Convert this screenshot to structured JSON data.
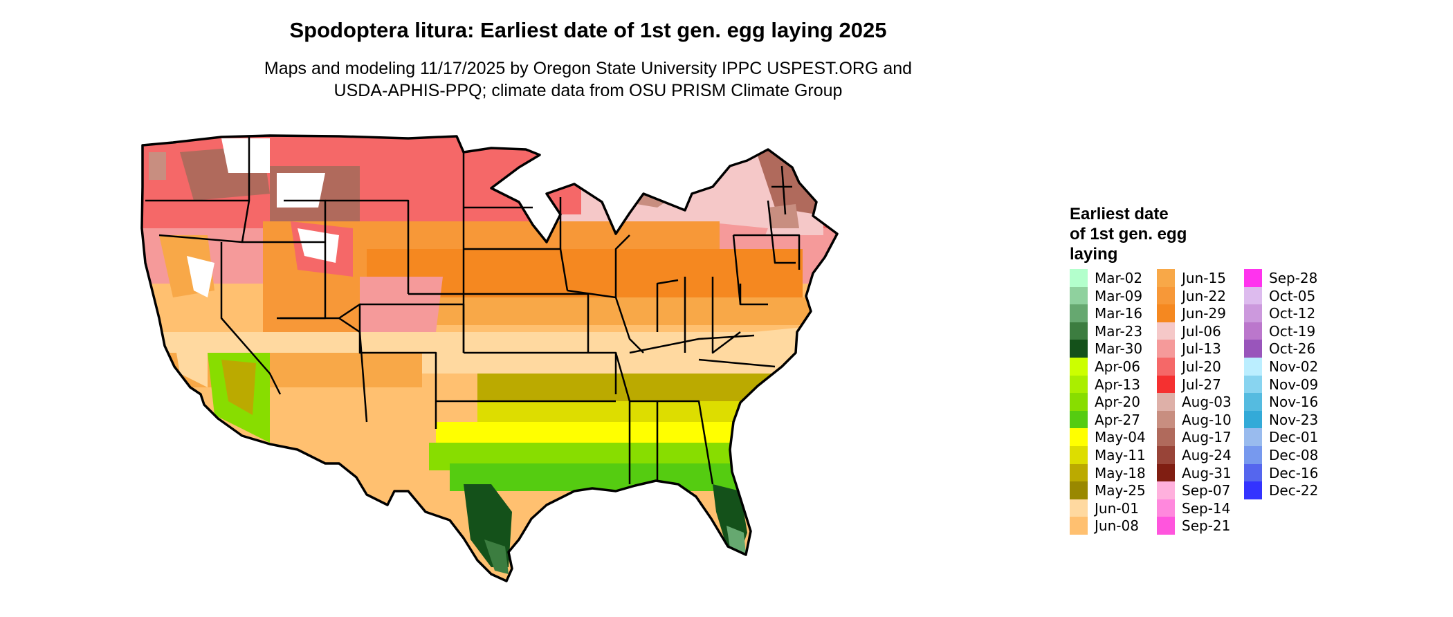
{
  "header": {
    "title": "Spodoptera litura: Earliest date of 1st gen. egg laying 2025",
    "subtitle_line1": "Maps and modeling 11/17/2025 by Oregon State University IPPC USPEST.ORG and",
    "subtitle_line2": "USDA-APHIS-PPQ; climate data from OSU PRISM Climate Group"
  },
  "legend": {
    "title_lines": [
      "Earliest date",
      "of 1st gen. egg",
      "laying"
    ],
    "columns": [
      [
        {
          "label": "Mar-02",
          "color": "#b3ffcc"
        },
        {
          "label": "Mar-09",
          "color": "#8fd19e"
        },
        {
          "label": "Mar-16",
          "color": "#66a870"
        },
        {
          "label": "Mar-23",
          "color": "#3c7d40"
        },
        {
          "label": "Mar-30",
          "color": "#14511a"
        },
        {
          "label": "Apr-06",
          "color": "#ccff00"
        },
        {
          "label": "Apr-13",
          "color": "#aaee00"
        },
        {
          "label": "Apr-20",
          "color": "#88dd00"
        },
        {
          "label": "Apr-27",
          "color": "#55cc11"
        },
        {
          "label": "May-04",
          "color": "#ffff00"
        },
        {
          "label": "May-11",
          "color": "#dddd00"
        },
        {
          "label": "May-18",
          "color": "#bbaa00"
        },
        {
          "label": "May-25",
          "color": "#998800"
        },
        {
          "label": "Jun-01",
          "color": "#ffd9a0"
        },
        {
          "label": "Jun-08",
          "color": "#ffc070"
        }
      ],
      [
        {
          "label": "Jun-15",
          "color": "#f8a848"
        },
        {
          "label": "Jun-22",
          "color": "#f79838"
        },
        {
          "label": "Jun-29",
          "color": "#f58820"
        },
        {
          "label": "Jul-06",
          "color": "#f5c8c8"
        },
        {
          "label": "Jul-13",
          "color": "#f59a9a"
        },
        {
          "label": "Jul-20",
          "color": "#f56868"
        },
        {
          "label": "Jul-27",
          "color": "#f53030"
        },
        {
          "label": "Aug-03",
          "color": "#deb0a8"
        },
        {
          "label": "Aug-10",
          "color": "#c88e80"
        },
        {
          "label": "Aug-17",
          "color": "#b06a5c"
        },
        {
          "label": "Aug-24",
          "color": "#984438"
        },
        {
          "label": "Aug-31",
          "color": "#801e12"
        },
        {
          "label": "Sep-07",
          "color": "#ffb0dd"
        },
        {
          "label": "Sep-14",
          "color": "#ff88dd"
        },
        {
          "label": "Sep-21",
          "color": "#ff55dd"
        }
      ],
      [
        {
          "label": "Sep-28",
          "color": "#ff33ee"
        },
        {
          "label": "Oct-05",
          "color": "#ddbbee"
        },
        {
          "label": "Oct-12",
          "color": "#cc99dd"
        },
        {
          "label": "Oct-19",
          "color": "#bb77cc"
        },
        {
          "label": "Oct-26",
          "color": "#9955bb"
        },
        {
          "label": "Nov-02",
          "color": "#bbeeff"
        },
        {
          "label": "Nov-09",
          "color": "#88d4f0"
        },
        {
          "label": "Nov-16",
          "color": "#55bbe0"
        },
        {
          "label": "Nov-23",
          "color": "#33aad8"
        },
        {
          "label": "Dec-01",
          "color": "#99bbee"
        },
        {
          "label": "Dec-08",
          "color": "#7799ee"
        },
        {
          "label": "Dec-16",
          "color": "#5566ee"
        },
        {
          "label": "Dec-22",
          "color": "#3333ff"
        }
      ]
    ]
  }
}
